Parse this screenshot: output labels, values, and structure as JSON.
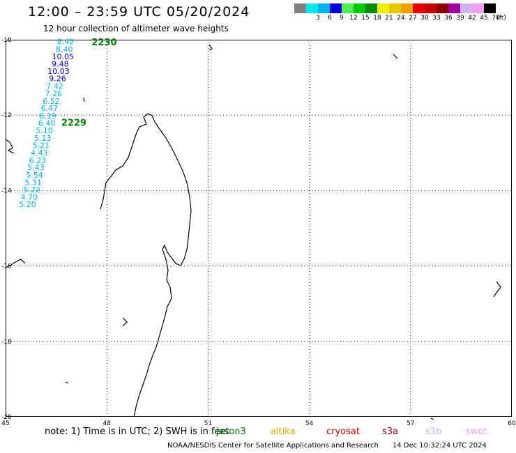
{
  "header": {
    "title": "12:00 – 23:59 UTC 05/20/2024",
    "subtitle": "12 hour collection of altimeter wave heights"
  },
  "legend": {
    "unit_label": "(ft)",
    "items": [
      {
        "label": "",
        "color": "#808080"
      },
      {
        "label": "3",
        "color": "#00e8e8"
      },
      {
        "label": "6",
        "color": "#00b4f0"
      },
      {
        "label": "9",
        "color": "#0000e0"
      },
      {
        "label": "12",
        "color": "#50f050"
      },
      {
        "label": "15",
        "color": "#00c800"
      },
      {
        "label": "18",
        "color": "#008c00"
      },
      {
        "label": "21",
        "color": "#f0f000"
      },
      {
        "label": "24",
        "color": "#e8c800"
      },
      {
        "label": "27",
        "color": "#f0a000"
      },
      {
        "label": "30",
        "color": "#f00000"
      },
      {
        "label": "33",
        "color": "#c80000"
      },
      {
        "label": "36",
        "color": "#8c0000"
      },
      {
        "label": "39",
        "color": "#a000a0"
      },
      {
        "label": "42",
        "color": "#d0b4f0"
      },
      {
        "label": "45",
        "color": "#f0a0f0"
      },
      {
        "label": "70",
        "color": "#000000"
      }
    ]
  },
  "map": {
    "lon_range": [
      45,
      60
    ],
    "lat_range": [
      -20,
      -10
    ],
    "lon_ticks": [
      "45",
      "48",
      "51",
      "54",
      "57",
      "60"
    ],
    "lat_ticks": [
      "-10",
      "-12",
      "-14",
      "-16",
      "-18",
      "-20"
    ],
    "track_times": [
      {
        "label": "2230",
        "lon": 47.55,
        "lat": -10.15,
        "color": "#008000"
      },
      {
        "label": "2229",
        "lon": 46.65,
        "lat": -12.28,
        "color": "#008000"
      }
    ],
    "track": [
      {
        "value": "8.42",
        "lon": 46.78,
        "lat": -10.12,
        "color": "#00b4f0"
      },
      {
        "value": "8.40",
        "lon": 46.74,
        "lat": -10.32,
        "color": "#00b4f0"
      },
      {
        "value": "10.05",
        "lon": 46.7,
        "lat": -10.52,
        "color": "#0000e0"
      },
      {
        "value": "9.48",
        "lon": 46.62,
        "lat": -10.71,
        "color": "#0000e0"
      },
      {
        "value": "10.03",
        "lon": 46.57,
        "lat": -10.91,
        "color": "#0000e0"
      },
      {
        "value": "9.26",
        "lon": 46.54,
        "lat": -11.1,
        "color": "#0000e0"
      },
      {
        "value": "7.42",
        "lon": 46.46,
        "lat": -11.3,
        "color": "#00b4f0"
      },
      {
        "value": "7.26",
        "lon": 46.42,
        "lat": -11.5,
        "color": "#00b4f0"
      },
      {
        "value": "6.52",
        "lon": 46.35,
        "lat": -11.7,
        "color": "#00b4f0"
      },
      {
        "value": "6.47",
        "lon": 46.3,
        "lat": -11.89,
        "color": "#00b4f0"
      },
      {
        "value": "6.19",
        "lon": 46.25,
        "lat": -12.09,
        "color": "#00b4f0"
      },
      {
        "value": "6.40",
        "lon": 46.22,
        "lat": -12.28,
        "color": "#00b4f0"
      },
      {
        "value": "5.10",
        "lon": 46.15,
        "lat": -12.48,
        "color": "#00b4f0"
      },
      {
        "value": "5.13",
        "lon": 46.1,
        "lat": -12.68,
        "color": "#00b4f0"
      },
      {
        "value": "5.21",
        "lon": 46.05,
        "lat": -12.87,
        "color": "#00b4f0"
      },
      {
        "value": "4.43",
        "lon": 46.0,
        "lat": -13.07,
        "color": "#00b4f0"
      },
      {
        "value": "6.23",
        "lon": 45.95,
        "lat": -13.27,
        "color": "#00b4f0"
      },
      {
        "value": "5.43",
        "lon": 45.9,
        "lat": -13.46,
        "color": "#00b4f0"
      },
      {
        "value": "5.54",
        "lon": 45.86,
        "lat": -13.66,
        "color": "#00b4f0"
      },
      {
        "value": "5.31",
        "lon": 45.82,
        "lat": -13.85,
        "color": "#00b4f0"
      },
      {
        "value": "5.22",
        "lon": 45.78,
        "lat": -14.05,
        "color": "#00b4f0"
      },
      {
        "value": "4.70",
        "lon": 45.7,
        "lat": -14.24,
        "color": "#00b4f0"
      },
      {
        "value": "5.20",
        "lon": 45.65,
        "lat": -14.44,
        "color": "#00b4f0"
      }
    ]
  },
  "footer": {
    "note": "note:  1) Time is in UTC; 2) SWH is in feet",
    "missions": [
      {
        "name": "jason3",
        "color": "#008000"
      },
      {
        "name": "altika",
        "color": "#f0a000"
      },
      {
        "name": "cryosat",
        "color": "#e00000"
      },
      {
        "name": "s3a",
        "color": "#a00000"
      },
      {
        "name": "s3b",
        "color": "#c8b4f0"
      },
      {
        "name": "swot",
        "color": "#f0a0f0"
      }
    ],
    "credit": "NOAA/NESDIS Center for Satellite Applications and Research",
    "timestamp": "14 Dec 10:32:24 UTC 2024"
  }
}
